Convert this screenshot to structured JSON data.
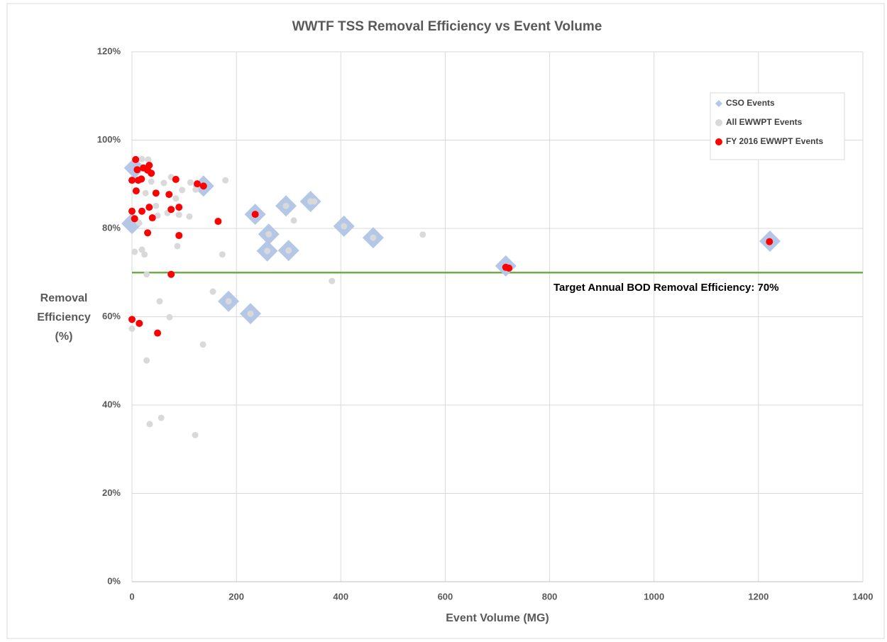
{
  "chart_data": {
    "type": "scatter",
    "title": "WWTF TSS Removal Efficiency vs Event Volume",
    "x_label": "Event Volume (MG)",
    "y_label": [
      "Removal",
      "Efficiency",
      "(%)"
    ],
    "xlim": [
      0,
      1400
    ],
    "xticks": [
      0,
      200,
      400,
      600,
      800,
      1000,
      1200,
      1400
    ],
    "ylim": [
      0,
      120
    ],
    "yticks": [
      {
        "value": 0,
        "label": "0%"
      },
      {
        "value": 20,
        "label": "20%"
      },
      {
        "value": 40,
        "label": "40%"
      },
      {
        "value": 60,
        "label": "60%"
      },
      {
        "value": 80,
        "label": "80%"
      },
      {
        "value": 100,
        "label": "100%"
      },
      {
        "value": 120,
        "label": "120%"
      }
    ],
    "grid": true,
    "legend": "upper right",
    "reference_line": {
      "value": 70,
      "label": "Target Annual BOD Removal Efficiency: 70%",
      "color": "#70ad47"
    },
    "series": [
      {
        "name": "CSO Events",
        "color": "#b4c7e7",
        "marker": "diamond",
        "x": [
          0,
          5,
          137,
          236,
          262,
          259,
          295,
          300,
          342,
          406,
          462,
          185,
          227,
          716,
          1222
        ],
        "y": [
          81.1,
          93.7,
          89.6,
          83.2,
          78.7,
          74.9,
          85.1,
          75.0,
          86.1,
          80.5,
          77.9,
          63.5,
          60.7,
          71.5,
          77.1
        ]
      },
      {
        "name": "All EWWPT Events",
        "color": "#d9d9d9",
        "marker": "circle",
        "x": [
          0,
          5,
          19,
          24,
          28,
          28,
          34,
          56,
          53,
          72,
          121,
          136,
          155,
          173,
          179,
          310,
          383,
          557,
          87,
          90,
          110,
          96,
          112,
          122,
          75,
          61,
          68,
          49,
          46,
          37,
          31,
          19,
          13,
          26,
          84,
          185,
          227,
          262,
          259,
          295,
          300,
          342,
          349,
          406,
          462,
          236,
          137
        ],
        "y": [
          57.3,
          74.7,
          75.2,
          74.1,
          69.6,
          50.1,
          35.7,
          37.1,
          63.5,
          59.9,
          33.2,
          53.7,
          65.7,
          74.1,
          90.9,
          81.8,
          68.1,
          78.6,
          76.0,
          83.1,
          82.7,
          88.7,
          90.4,
          88.8,
          91.6,
          90.3,
          83.5,
          82.9,
          85.1,
          90.6,
          95.6,
          95.7,
          81.3,
          88.0,
          86.8,
          63.5,
          60.7,
          78.7,
          74.9,
          85.1,
          75.0,
          86.1,
          86.1,
          80.5,
          77.9,
          83.2,
          89.6
        ]
      },
      {
        "name": "FY 2016 EWWPT Events",
        "color": "#ff0000",
        "marker": "circle",
        "x": [
          0,
          14,
          0,
          5,
          0,
          7,
          10,
          8,
          12,
          18,
          19,
          22,
          30,
          33,
          37,
          33,
          30,
          39,
          46,
          49,
          71,
          75,
          75,
          84,
          90,
          90,
          125,
          137,
          165,
          236,
          716,
          722,
          1221
        ],
        "y": [
          59.4,
          58.5,
          83.9,
          82.2,
          90.9,
          95.6,
          93.3,
          88.5,
          90.9,
          91.2,
          83.9,
          93.7,
          93.2,
          94.3,
          92.5,
          84.8,
          79.0,
          82.4,
          88.0,
          56.3,
          87.7,
          69.6,
          84.3,
          91.1,
          84.8,
          78.4,
          90.1,
          89.6,
          81.6,
          83.2,
          71.2,
          71.0,
          77.0
        ]
      }
    ]
  }
}
